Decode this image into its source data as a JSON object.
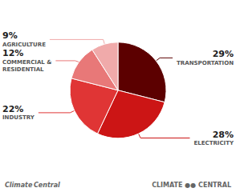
{
  "chart_data": {
    "type": "pie",
    "categories": [
      "TRANSPORTATION",
      "ELECTRICITY",
      "INDUSTRY",
      "COMMERCIAL &\nRESIDENTIAL",
      "AGRICULTURE"
    ],
    "values": [
      29,
      28,
      22,
      12,
      9
    ],
    "value_labels": [
      "29%",
      "28%",
      "22%",
      "12%",
      "9%"
    ],
    "colors": [
      "#5C0000",
      "#CC1515",
      "#E03535",
      "#E87878",
      "#F0AAAA"
    ],
    "data_labels": true,
    "legend": false,
    "annotations": [
      "Climate Central",
      "CLIMATE ●● CENTRAL"
    ]
  }
}
